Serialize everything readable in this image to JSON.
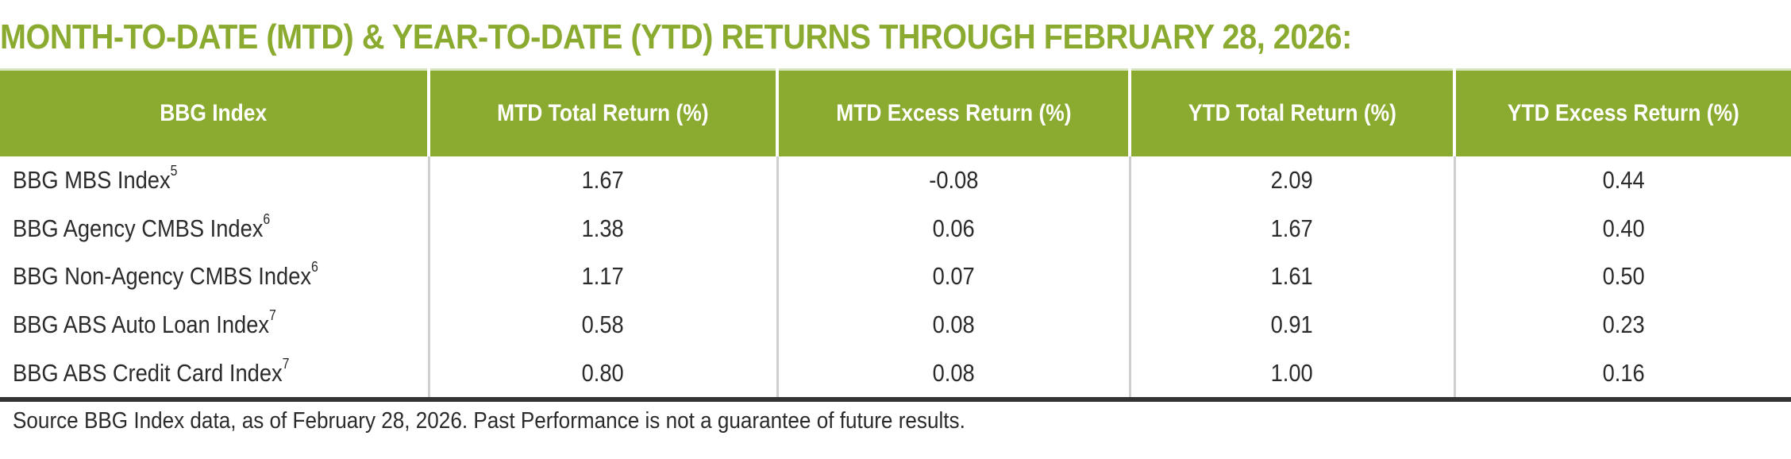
{
  "title": "MONTH-TO-DATE (MTD) & YEAR-TO-DATE (YTD) RETURNS THROUGH FEBRUARY 28, 2026:",
  "colors": {
    "header_bg": "#8aab2f",
    "title": "#8aab2f"
  },
  "table": {
    "headers": [
      "BBG Index",
      "MTD Total Return (%)",
      "MTD Excess Return (%)",
      "YTD Total Return (%)",
      "YTD Excess Return (%)"
    ],
    "rows": [
      {
        "name": "BBG MBS Index",
        "note": "5",
        "values": [
          "1.67",
          "-0.08",
          "2.09",
          "0.44"
        ]
      },
      {
        "name": "BBG Agency CMBS Index",
        "note": "6",
        "values": [
          "1.38",
          "0.06",
          "1.67",
          "0.40"
        ]
      },
      {
        "name": "BBG Non-Agency CMBS Index",
        "note": "6",
        "values": [
          "1.17",
          "0.07",
          "1.61",
          "0.50"
        ]
      },
      {
        "name": "BBG ABS Auto Loan Index",
        "note": "7",
        "values": [
          "0.58",
          "0.08",
          "0.91",
          "0.23"
        ]
      },
      {
        "name": "BBG ABS Credit Card Index",
        "note": "7",
        "values": [
          "0.80",
          "0.08",
          "1.00",
          "0.16"
        ]
      }
    ]
  },
  "source": "Source BBG Index data, as of February 28, 2026. Past Performance is not a guarantee of future results."
}
